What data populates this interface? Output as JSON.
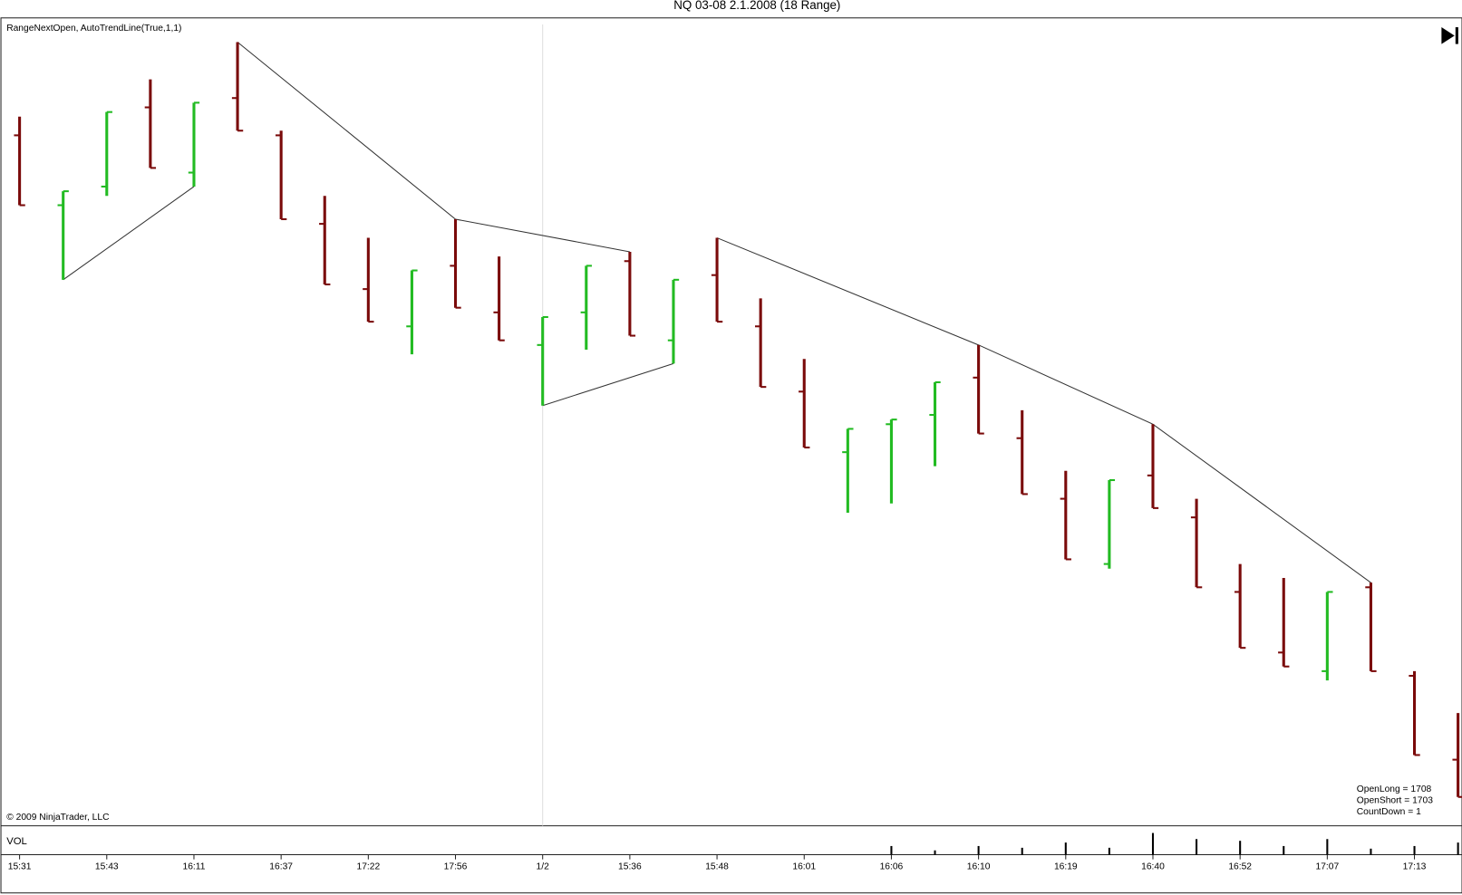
{
  "chart_data": {
    "type": "ohlc",
    "title": "NQ 03-08  2.1.2008 (18 Range)",
    "indicator_label": "RangeNextOpen, AutoTrendLine(True,1,1)",
    "copyright": "© 2009 NinjaTrader, LLC",
    "stats": [
      "OpenLong = 1708",
      "OpenShort = 1703",
      "CountDown = 1"
    ],
    "categories": [
      "15:31",
      null,
      "15:43",
      null,
      "16:11",
      null,
      "16:37",
      null,
      "17:22",
      null,
      "17:56",
      null,
      "1/2",
      null,
      "15:36",
      null,
      "15:48",
      null,
      "16:01",
      null,
      "16:06",
      null,
      "16:10",
      null,
      "16:19",
      null,
      "16:40",
      null,
      "16:52",
      null,
      "17:07",
      null,
      "17:13",
      null
    ],
    "open": [
      1725.75,
      1722,
      1723,
      1727.25,
      1723.75,
      1727.75,
      1725.75,
      1721,
      1717.5,
      1715.5,
      1718.75,
      1716.25,
      1714.5,
      1716.25,
      1719,
      1714.75,
      1718.25,
      1715.5,
      1712,
      1708.75,
      1710.25,
      1710.75,
      1712.75,
      1709.5,
      1706.25,
      1702.75,
      1707.5,
      1705.25,
      1701.25,
      1698,
      1697,
      1701.5,
      1696.75,
      1692.25
    ],
    "high": [
      1726.75,
      1722.75,
      1727,
      1728.75,
      1727.5,
      1730.75,
      1726,
      1722.5,
      1720.25,
      1718.5,
      1721.25,
      1719.25,
      1716,
      1718.75,
      1719.5,
      1718,
      1720.25,
      1717,
      1713.75,
      1710,
      1710.5,
      1712.5,
      1714.5,
      1711,
      1707.75,
      1707.25,
      1710.25,
      1706.25,
      1702.75,
      1702,
      1701.25,
      1701.75,
      1697,
      1694.75
    ],
    "low": [
      1722,
      1718,
      1722.5,
      1724,
      1723,
      1726,
      1721.25,
      1717.75,
      1715.75,
      1714,
      1716.5,
      1714.75,
      1711.25,
      1714.25,
      1715,
      1713.5,
      1715.75,
      1712.25,
      1709,
      1705.5,
      1706,
      1708,
      1709.75,
      1706.5,
      1703,
      1702.5,
      1705.75,
      1701.5,
      1698.25,
      1697.25,
      1696.5,
      1697,
      1692.5,
      1690.25
    ],
    "close": [
      1722,
      1722.75,
      1727,
      1724,
      1727.5,
      1726,
      1721.25,
      1717.75,
      1715.75,
      1718.5,
      1716.5,
      1714.75,
      1716,
      1718.75,
      1715,
      1718,
      1715.75,
      1712.25,
      1709,
      1710,
      1710.5,
      1712.5,
      1709.75,
      1706.5,
      1703,
      1707.25,
      1705.75,
      1701.5,
      1698.25,
      1697.25,
      1701.25,
      1697,
      1692.5,
      1690.25
    ],
    "up_color": "#22bb22",
    "down_color": "#7a0a0a",
    "ylim": [
      1688.75,
      1732
    ],
    "trend_color": "#333333",
    "trend_lines": [
      {
        "x": [
          1,
          4
        ],
        "values": [
          1718,
          1723
        ]
      },
      {
        "x": [
          5,
          10,
          14
        ],
        "values": [
          1730.75,
          1721.25,
          1719.5
        ]
      },
      {
        "x": [
          12,
          15
        ],
        "values": [
          1711.25,
          1713.5
        ]
      },
      {
        "x": [
          16,
          22,
          26,
          31
        ],
        "values": [
          1720.25,
          1714.5,
          1710.25,
          1701.75
        ]
      }
    ],
    "volume": {
      "label": "VOL",
      "ylim": [
        0,
        30
      ],
      "color": "#000000",
      "values": [
        0,
        0,
        0,
        0,
        0,
        0,
        0,
        0,
        0,
        0,
        0,
        0,
        0,
        0,
        0,
        0,
        0,
        0,
        0,
        0,
        10,
        5,
        10,
        8,
        14,
        8,
        25,
        18,
        16,
        10,
        18,
        7,
        10,
        14
      ]
    }
  }
}
